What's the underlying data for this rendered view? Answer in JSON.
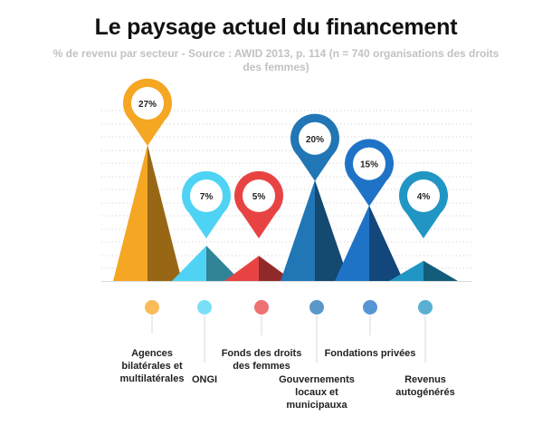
{
  "header": {
    "title": "Le paysage actuel du financement",
    "subtitle": "% de revenu par secteur - Source : AWID 2013, p. 114 (n = 740 organisations des droits des femmes)"
  },
  "chart_data": {
    "type": "bar",
    "title": "Le paysage actuel du financement",
    "subtitle": "% de revenu par secteur - Source : AWID 2013, p. 114 (n = 740 organisations des droits des femmes)",
    "unit": "%",
    "grid": true,
    "categories": [
      "Agences bilatérales et multilatérales",
      "ONGI",
      "Fonds des droits des femmes",
      "Gouvernements locaux et municipauxa",
      "Fondations privées",
      "Revenus autogénérés"
    ],
    "values": [
      27,
      7,
      5,
      20,
      15,
      4
    ],
    "labels": [
      "27%",
      "7%",
      "5%",
      "20%",
      "15%",
      "4%"
    ],
    "colors": [
      "#f5a623",
      "#4fd3f5",
      "#e84343",
      "#2176b5",
      "#1f73c7",
      "#2196c4"
    ]
  }
}
